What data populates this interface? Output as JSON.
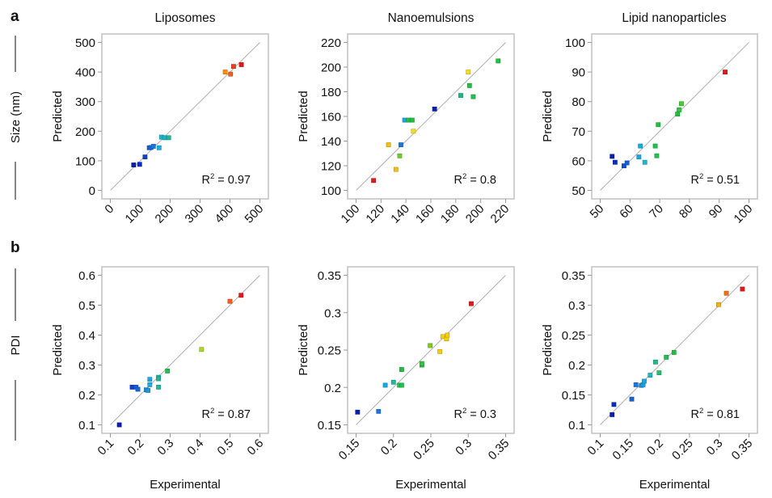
{
  "figure": {
    "panel_labels": [
      "a",
      "b"
    ],
    "row_labels": [
      "Size (nm)",
      "PDI"
    ],
    "column_titles": [
      "Liposomes",
      "Nanoemulsions",
      "Lipid nanoparticles"
    ],
    "xlabel": "Experimental",
    "ylabel": "Predicted",
    "identity_line_color": "#b0b0b0",
    "frame_color": "#bdbdbd"
  },
  "chart_data": [
    {
      "id": "a-liposomes",
      "type": "scatter",
      "row": "a",
      "title": "Liposomes",
      "xlabel": "",
      "ylabel": "Predicted",
      "row_label": "Size (nm)",
      "xlim": [
        0,
        500
      ],
      "ylim": [
        0,
        500
      ],
      "xticks": [
        0,
        100,
        200,
        300,
        400,
        500
      ],
      "yticks": [
        0,
        100,
        200,
        300,
        400,
        500
      ],
      "xtick_labels": [
        "0",
        "100",
        "200",
        "300",
        "400",
        "500"
      ],
      "ytick_labels": [
        "0",
        "100",
        "200",
        "300",
        "400",
        "500"
      ],
      "annotation": {
        "prefix": "R",
        "sup": "2",
        "suffix": " = 0.97"
      },
      "points": [
        {
          "x": 78,
          "y": 86,
          "color": "#0a1fb0"
        },
        {
          "x": 98,
          "y": 88,
          "color": "#0a2dc0"
        },
        {
          "x": 116,
          "y": 113,
          "color": "#1040cc"
        },
        {
          "x": 130,
          "y": 144,
          "color": "#1660d8"
        },
        {
          "x": 136,
          "y": 145,
          "color": "#1766d8"
        },
        {
          "x": 144,
          "y": 149,
          "color": "#1a78dc"
        },
        {
          "x": 163,
          "y": 144,
          "color": "#1ab0e6"
        },
        {
          "x": 171,
          "y": 180,
          "color": "#1ab8d6"
        },
        {
          "x": 181,
          "y": 178,
          "color": "#1ab4c4"
        },
        {
          "x": 195,
          "y": 178,
          "color": "#1fb890"
        },
        {
          "x": 384,
          "y": 400,
          "color": "#f59010"
        },
        {
          "x": 402,
          "y": 393,
          "color": "#f06018"
        },
        {
          "x": 412,
          "y": 419,
          "color": "#ec4018"
        },
        {
          "x": 438,
          "y": 425,
          "color": "#e01a1a"
        }
      ]
    },
    {
      "id": "a-nanoemulsions",
      "type": "scatter",
      "row": "a",
      "title": "Nanoemulsions",
      "xlabel": "",
      "ylabel": "Predicted",
      "xlim": [
        100,
        220
      ],
      "ylim": [
        100,
        220
      ],
      "xticks": [
        100,
        120,
        140,
        160,
        180,
        200,
        220
      ],
      "yticks": [
        100,
        120,
        140,
        160,
        180,
        200,
        220
      ],
      "xtick_labels": [
        "100",
        "120",
        "140",
        "160",
        "180",
        "200",
        "220"
      ],
      "ytick_labels": [
        "100",
        "120",
        "140",
        "160",
        "180",
        "200",
        "220"
      ],
      "annotation": {
        "prefix": "R",
        "sup": "2",
        "suffix": " = 0.8"
      },
      "points": [
        {
          "x": 114,
          "y": 108,
          "color": "#e01a1a"
        },
        {
          "x": 126,
          "y": 137,
          "color": "#f5c010"
        },
        {
          "x": 132,
          "y": 117,
          "color": "#f5c010"
        },
        {
          "x": 135,
          "y": 128,
          "color": "#6ccc30"
        },
        {
          "x": 136,
          "y": 137,
          "color": "#1a78dc"
        },
        {
          "x": 139,
          "y": 157,
          "color": "#1aa8e0"
        },
        {
          "x": 142,
          "y": 157,
          "color": "#22c040"
        },
        {
          "x": 145,
          "y": 157,
          "color": "#22c040"
        },
        {
          "x": 146,
          "y": 148,
          "color": "#f5e010"
        },
        {
          "x": 163,
          "y": 166,
          "color": "#0a1fb0"
        },
        {
          "x": 184,
          "y": 177,
          "color": "#1fb880"
        },
        {
          "x": 191,
          "y": 185,
          "color": "#22c040"
        },
        {
          "x": 190,
          "y": 196,
          "color": "#f5e010"
        },
        {
          "x": 194,
          "y": 176,
          "color": "#22c050"
        },
        {
          "x": 214,
          "y": 205,
          "color": "#22c040"
        }
      ]
    },
    {
      "id": "a-lipid-nanoparticles",
      "type": "scatter",
      "row": "a",
      "title": "Lipid nanoparticles",
      "xlabel": "",
      "ylabel": "Predicted",
      "xlim": [
        50,
        100
      ],
      "ylim": [
        50,
        100
      ],
      "xticks": [
        50,
        60,
        70,
        80,
        90,
        100
      ],
      "yticks": [
        50,
        60,
        70,
        80,
        90,
        100
      ],
      "xtick_labels": [
        "50",
        "60",
        "70",
        "80",
        "90",
        "100"
      ],
      "ytick_labels": [
        "50",
        "60",
        "70",
        "80",
        "90",
        "100"
      ],
      "annotation": {
        "prefix": "R",
        "sup": "2",
        "suffix": " = 0.51"
      },
      "points": [
        {
          "x": 54,
          "y": 61.5,
          "color": "#0a1fb0"
        },
        {
          "x": 55,
          "y": 59.5,
          "color": "#0a2dc0"
        },
        {
          "x": 58,
          "y": 58.3,
          "color": "#1050d0"
        },
        {
          "x": 59,
          "y": 59.3,
          "color": "#1660d8"
        },
        {
          "x": 63,
          "y": 61.3,
          "color": "#1aa8e0"
        },
        {
          "x": 63.5,
          "y": 65,
          "color": "#1aa8e0"
        },
        {
          "x": 65,
          "y": 59.5,
          "color": "#1ab8d6"
        },
        {
          "x": 68.5,
          "y": 65,
          "color": "#22c050"
        },
        {
          "x": 69,
          "y": 61.7,
          "color": "#22c050"
        },
        {
          "x": 69.5,
          "y": 72.2,
          "color": "#22c040"
        },
        {
          "x": 76,
          "y": 75.8,
          "color": "#22c040"
        },
        {
          "x": 76.5,
          "y": 77.2,
          "color": "#30c840"
        },
        {
          "x": 77.3,
          "y": 79.3,
          "color": "#44cc30"
        },
        {
          "x": 92,
          "y": 90,
          "color": "#e01a1a"
        }
      ]
    },
    {
      "id": "b-liposomes",
      "type": "scatter",
      "row": "b",
      "title": "",
      "xlabel": "Experimental",
      "ylabel": "Predicted",
      "row_label": "PDI",
      "xlim": [
        0.1,
        0.6
      ],
      "ylim": [
        0.1,
        0.6
      ],
      "xticks": [
        0.1,
        0.2,
        0.3,
        0.4,
        0.5,
        0.6
      ],
      "yticks": [
        0.1,
        0.2,
        0.3,
        0.4,
        0.5,
        0.6
      ],
      "xtick_labels": [
        "0.1",
        "0.2",
        "0.3",
        "0.4",
        "0.5",
        "0.6"
      ],
      "ytick_labels": [
        "0.1",
        "0.2",
        "0.3",
        "0.4",
        "0.5",
        "0.6"
      ],
      "annotation": {
        "prefix": "R",
        "sup": "2",
        "suffix": " = 0.87"
      },
      "points": [
        {
          "x": 0.13,
          "y": 0.1,
          "color": "#0a1fb0"
        },
        {
          "x": 0.173,
          "y": 0.226,
          "color": "#1040cc"
        },
        {
          "x": 0.186,
          "y": 0.226,
          "color": "#1660d8"
        },
        {
          "x": 0.192,
          "y": 0.219,
          "color": "#1766d8"
        },
        {
          "x": 0.22,
          "y": 0.217,
          "color": "#1a90e0"
        },
        {
          "x": 0.226,
          "y": 0.215,
          "color": "#1a98e0"
        },
        {
          "x": 0.232,
          "y": 0.252,
          "color": "#1aa8e0"
        },
        {
          "x": 0.232,
          "y": 0.234,
          "color": "#1ab0d8"
        },
        {
          "x": 0.261,
          "y": 0.259,
          "color": "#1fb8a0"
        },
        {
          "x": 0.261,
          "y": 0.254,
          "color": "#1fb890"
        },
        {
          "x": 0.261,
          "y": 0.226,
          "color": "#1fb8a8"
        },
        {
          "x": 0.291,
          "y": 0.28,
          "color": "#22c050"
        },
        {
          "x": 0.405,
          "y": 0.352,
          "color": "#a8d820"
        },
        {
          "x": 0.5,
          "y": 0.513,
          "color": "#f06018"
        },
        {
          "x": 0.537,
          "y": 0.533,
          "color": "#e01a1a"
        }
      ]
    },
    {
      "id": "b-nanoemulsions",
      "type": "scatter",
      "row": "b",
      "title": "",
      "xlabel": "Experimental",
      "ylabel": "Predicted",
      "xlim": [
        0.15,
        0.35
      ],
      "ylim": [
        0.15,
        0.35
      ],
      "xticks": [
        0.15,
        0.2,
        0.25,
        0.3,
        0.35
      ],
      "yticks": [
        0.15,
        0.2,
        0.25,
        0.3,
        0.35
      ],
      "xtick_labels": [
        "0.15",
        "0.2",
        "0.25",
        "0.3",
        "0.35"
      ],
      "ytick_labels": [
        "0.15",
        "0.2",
        "0.25",
        "0.3",
        "0.35"
      ],
      "annotation": {
        "prefix": "R",
        "sup": "2",
        "suffix": " = 0.3"
      },
      "points": [
        {
          "x": 0.152,
          "y": 0.167,
          "color": "#0a1fb0"
        },
        {
          "x": 0.18,
          "y": 0.168,
          "color": "#1a78dc"
        },
        {
          "x": 0.189,
          "y": 0.203,
          "color": "#1aa8e0"
        },
        {
          "x": 0.2,
          "y": 0.207,
          "color": "#1fb8a0"
        },
        {
          "x": 0.208,
          "y": 0.203,
          "color": "#22c050"
        },
        {
          "x": 0.211,
          "y": 0.203,
          "color": "#22c050"
        },
        {
          "x": 0.211,
          "y": 0.224,
          "color": "#22c040"
        },
        {
          "x": 0.238,
          "y": 0.23,
          "color": "#22c040"
        },
        {
          "x": 0.238,
          "y": 0.232,
          "color": "#30c840"
        },
        {
          "x": 0.249,
          "y": 0.256,
          "color": "#80cc20"
        },
        {
          "x": 0.262,
          "y": 0.248,
          "color": "#f5d010"
        },
        {
          "x": 0.266,
          "y": 0.268,
          "color": "#f5d010"
        },
        {
          "x": 0.271,
          "y": 0.265,
          "color": "#f5d010"
        },
        {
          "x": 0.272,
          "y": 0.27,
          "color": "#f5d010"
        },
        {
          "x": 0.304,
          "y": 0.312,
          "color": "#e01a1a"
        }
      ]
    },
    {
      "id": "b-lipid-nanoparticles",
      "type": "scatter",
      "row": "b",
      "title": "",
      "xlabel": "Experimental",
      "ylabel": "Predicted",
      "xlim": [
        0.1,
        0.35
      ],
      "ylim": [
        0.1,
        0.35
      ],
      "xticks": [
        0.1,
        0.15,
        0.2,
        0.25,
        0.3,
        0.35
      ],
      "yticks": [
        0.1,
        0.15,
        0.2,
        0.25,
        0.3,
        0.35
      ],
      "xtick_labels": [
        "0.1",
        "0.15",
        "0.2",
        "0.25",
        "0.3",
        "0.35"
      ],
      "ytick_labels": [
        "0.1",
        "0.15",
        "0.2",
        "0.25",
        "0.3",
        "0.35"
      ],
      "annotation": {
        "prefix": "R",
        "sup": "2",
        "suffix": " = 0.81"
      },
      "points": [
        {
          "x": 0.12,
          "y": 0.117,
          "color": "#0a1fb0"
        },
        {
          "x": 0.123,
          "y": 0.134,
          "color": "#0a2dc0"
        },
        {
          "x": 0.153,
          "y": 0.143,
          "color": "#1660d8"
        },
        {
          "x": 0.16,
          "y": 0.167,
          "color": "#1a78dc"
        },
        {
          "x": 0.169,
          "y": 0.166,
          "color": "#1a90e0"
        },
        {
          "x": 0.172,
          "y": 0.167,
          "color": "#1aa0e0"
        },
        {
          "x": 0.174,
          "y": 0.173,
          "color": "#1aa8e0"
        },
        {
          "x": 0.184,
          "y": 0.183,
          "color": "#1ab8c8"
        },
        {
          "x": 0.193,
          "y": 0.205,
          "color": "#1fb890"
        },
        {
          "x": 0.199,
          "y": 0.187,
          "color": "#22c070"
        },
        {
          "x": 0.211,
          "y": 0.213,
          "color": "#22c050"
        },
        {
          "x": 0.224,
          "y": 0.221,
          "color": "#22c040"
        },
        {
          "x": 0.299,
          "y": 0.301,
          "color": "#f5b010"
        },
        {
          "x": 0.312,
          "y": 0.32,
          "color": "#f07018"
        },
        {
          "x": 0.339,
          "y": 0.327,
          "color": "#e01a1a"
        }
      ]
    }
  ]
}
